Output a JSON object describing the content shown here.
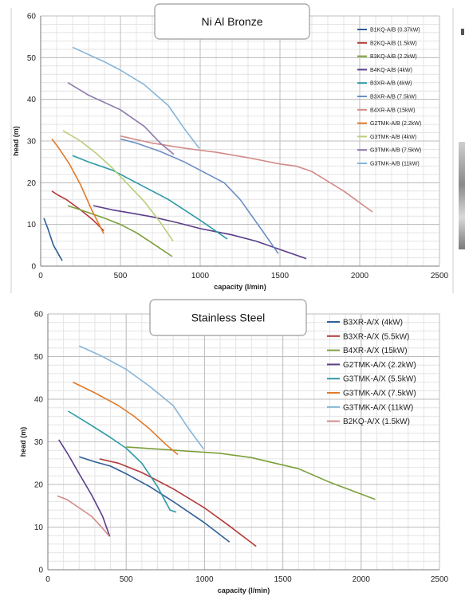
{
  "chart_data": [
    {
      "type": "line",
      "title": "Ni Al Bronze",
      "xlabel": "capacity (l/min)",
      "ylabel": "head (m)",
      "xlim": [
        0,
        2500
      ],
      "ylim": [
        0,
        60
      ],
      "xticks": [
        0,
        500,
        1000,
        1500,
        2000,
        2500
      ],
      "yticks": [
        0,
        10,
        20,
        30,
        40,
        50,
        60
      ],
      "grid": true,
      "legend": "right",
      "series": [
        {
          "name": "B1KQ-A/B (0.37kW)",
          "color": "#2f5f9a",
          "points": [
            [
              20,
              11.5
            ],
            [
              45,
              9
            ],
            [
              80,
              5
            ],
            [
              135,
              1.3
            ]
          ]
        },
        {
          "name": "B2KQ-A/B (1.5kW)",
          "color": "#b33a3a",
          "points": [
            [
              70,
              18
            ],
            [
              110,
              17
            ],
            [
              160,
              16
            ],
            [
              250,
              13.5
            ],
            [
              330,
              11
            ],
            [
              395,
              8.5
            ]
          ]
        },
        {
          "name": "B3KQ-A/B (2.2kW)",
          "color": "#7d9f3a",
          "points": [
            [
              170,
              14.5
            ],
            [
              250,
              13.5
            ],
            [
              400,
              11.5
            ],
            [
              500,
              10
            ],
            [
              600,
              8
            ],
            [
              700,
              5.5
            ],
            [
              825,
              2.3
            ]
          ]
        },
        {
          "name": "B4KQ-A/B (4kW)",
          "color": "#5b3d8a",
          "points": [
            [
              330,
              14.5
            ],
            [
              450,
              13.5
            ],
            [
              600,
              12.5
            ],
            [
              700,
              11.8
            ],
            [
              850,
              10.5
            ],
            [
              1000,
              9
            ],
            [
              1200,
              7.5
            ],
            [
              1350,
              6
            ],
            [
              1500,
              4
            ],
            [
              1665,
              1.8
            ]
          ]
        },
        {
          "name": "B3XR-A/B (4kW)",
          "color": "#2b9aa6",
          "points": [
            [
              200,
              26.5
            ],
            [
              300,
              25
            ],
            [
              450,
              23
            ],
            [
              600,
              20
            ],
            [
              800,
              16
            ],
            [
              1000,
              11
            ],
            [
              1170,
              6.5
            ]
          ]
        },
        {
          "name": "B3XR-A/B (7.5kW)",
          "color": "#6b8fc4",
          "points": [
            [
              500,
              30.5
            ],
            [
              600,
              29.5
            ],
            [
              750,
              27.5
            ],
            [
              900,
              25
            ],
            [
              1050,
              22
            ],
            [
              1150,
              20
            ],
            [
              1250,
              16
            ],
            [
              1380,
              9
            ],
            [
              1490,
              3
            ]
          ]
        },
        {
          "name": "B4XR-A/B (15kW)",
          "color": "#d48a8a",
          "points": [
            [
              500,
              31.2
            ],
            [
              700,
              29.5
            ],
            [
              900,
              28.3
            ],
            [
              1100,
              27.3
            ],
            [
              1300,
              26
            ],
            [
              1500,
              24.5
            ],
            [
              1600,
              24
            ],
            [
              1700,
              22.7
            ],
            [
              1900,
              18
            ],
            [
              2080,
              13
            ]
          ]
        },
        {
          "name": "G2TMK-A/B (2.2kW)",
          "color": "#e07a2a",
          "points": [
            [
              70,
              30.5
            ],
            [
              110,
              28.5
            ],
            [
              180,
              24.5
            ],
            [
              250,
              19.5
            ],
            [
              320,
              13.5
            ],
            [
              395,
              7.8
            ]
          ]
        },
        {
          "name": "G3TMK-A/B (4kW)",
          "color": "#b8cf7a",
          "points": [
            [
              140,
              32.5
            ],
            [
              250,
              30
            ],
            [
              350,
              27
            ],
            [
              450,
              23.5
            ],
            [
              550,
              19.5
            ],
            [
              650,
              15.5
            ],
            [
              750,
              10.5
            ],
            [
              830,
              6
            ]
          ]
        },
        {
          "name": "G3TMK-A/B (7.5kW)",
          "color": "#8f79ad",
          "points": [
            [
              170,
              44
            ],
            [
              300,
              41
            ],
            [
              500,
              37.5
            ],
            [
              650,
              33.5
            ],
            [
              750,
              29.5
            ],
            [
              835,
              26.8
            ]
          ]
        },
        {
          "name": "G3TMK-A/B (11kW)",
          "color": "#86b5d9",
          "points": [
            [
              200,
              52.5
            ],
            [
              400,
              49
            ],
            [
              500,
              47
            ],
            [
              650,
              43.5
            ],
            [
              800,
              38.5
            ],
            [
              900,
              33
            ],
            [
              995,
              28.2
            ]
          ]
        }
      ]
    },
    {
      "type": "line",
      "title": "Stainless Steel",
      "xlabel": "capacity (l/min)",
      "ylabel": "head (m)",
      "xlim": [
        0,
        2500
      ],
      "ylim": [
        0,
        60
      ],
      "xticks": [
        0,
        500,
        1000,
        1500,
        2000,
        2500
      ],
      "yticks": [
        0,
        10,
        20,
        30,
        40,
        50,
        60
      ],
      "grid": true,
      "legend": "right",
      "series": [
        {
          "name": "B3XR-A/X (4kW)",
          "color": "#2f5f9a",
          "points": [
            [
              200,
              26.5
            ],
            [
              300,
              25.3
            ],
            [
              400,
              24.3
            ],
            [
              500,
              22.5
            ],
            [
              650,
              19.5
            ],
            [
              800,
              16
            ],
            [
              1000,
              11
            ],
            [
              1160,
              6.5
            ]
          ]
        },
        {
          "name": "B3XR-A/X (5.5kW)",
          "color": "#b33a3a",
          "points": [
            [
              330,
              26
            ],
            [
              450,
              25
            ],
            [
              600,
              22.8
            ],
            [
              800,
              19
            ],
            [
              1000,
              14.5
            ],
            [
              1150,
              10.5
            ],
            [
              1330,
              5.5
            ]
          ]
        },
        {
          "name": "B4XR-A/X (15kW)",
          "color": "#7d9f3a",
          "points": [
            [
              500,
              28.8
            ],
            [
              700,
              28.3
            ],
            [
              900,
              27.8
            ],
            [
              1100,
              27.3
            ],
            [
              1300,
              26.3
            ],
            [
              1450,
              25
            ],
            [
              1600,
              23.7
            ],
            [
              1800,
              20.5
            ],
            [
              2090,
              16.5
            ]
          ]
        },
        {
          "name": "G2TMK-A/X (2.2kW)",
          "color": "#5b3d8a",
          "points": [
            [
              70,
              30.5
            ],
            [
              130,
              27
            ],
            [
              200,
              22.5
            ],
            [
              280,
              17.5
            ],
            [
              350,
              12.5
            ],
            [
              395,
              7.8
            ]
          ]
        },
        {
          "name": "G3TMK-A/X (5.5kW)",
          "color": "#2b9aa6",
          "points": [
            [
              130,
              37.2
            ],
            [
              250,
              34.5
            ],
            [
              400,
              31
            ],
            [
              500,
              28.5
            ],
            [
              600,
              25
            ],
            [
              700,
              19.5
            ],
            [
              780,
              14
            ],
            [
              820,
              13.5
            ]
          ]
        },
        {
          "name": "G3TMK-A/X (7.5kW)",
          "color": "#e07a2a",
          "points": [
            [
              160,
              44
            ],
            [
              300,
              41.5
            ],
            [
              450,
              38.5
            ],
            [
              550,
              36
            ],
            [
              650,
              33
            ],
            [
              750,
              29.5
            ],
            [
              830,
              27
            ]
          ]
        },
        {
          "name": "G3TMK-A/X (11kW)",
          "color": "#86b5d9",
          "points": [
            [
              200,
              52.5
            ],
            [
              350,
              50
            ],
            [
              500,
              47
            ],
            [
              650,
              43
            ],
            [
              800,
              38.5
            ],
            [
              900,
              33
            ],
            [
              995,
              28.3
            ]
          ]
        },
        {
          "name": "B2KQ-A/X (1.5kW)",
          "color": "#d48a8a",
          "points": [
            [
              60,
              17.3
            ],
            [
              120,
              16.5
            ],
            [
              200,
              14.5
            ],
            [
              280,
              12.5
            ],
            [
              330,
              10.5
            ],
            [
              390,
              8
            ]
          ]
        }
      ]
    }
  ]
}
